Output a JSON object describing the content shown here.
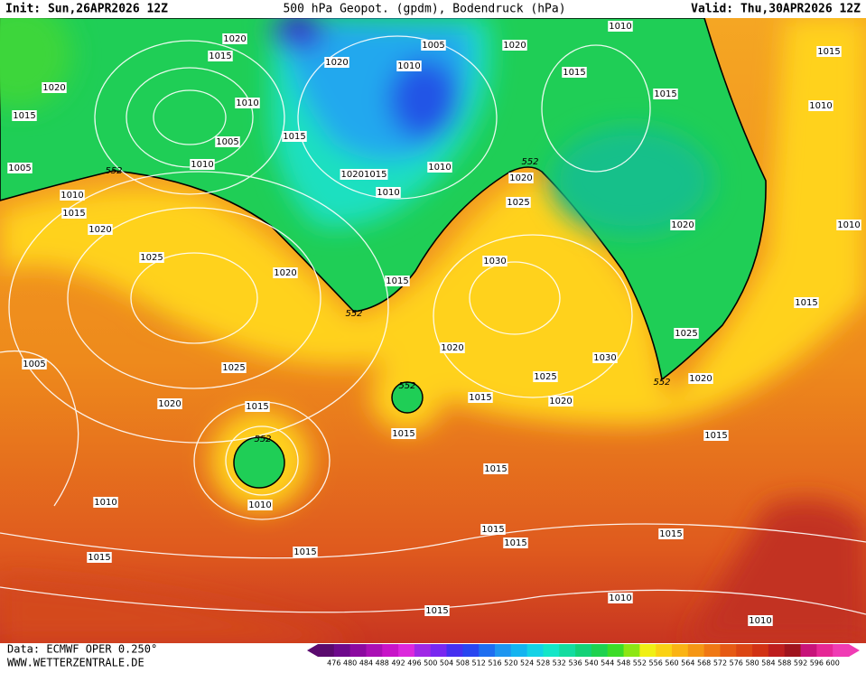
{
  "header": {
    "init": "Init: Sun,26APR2026 12Z",
    "title": "500 hPa Geopot. (gpdm), Bodendruck (hPa)",
    "valid": "Valid: Thu,30APR2026 12Z"
  },
  "footer": {
    "source": "Data: ECMWF OPER 0.250°",
    "website": "WWW.WETTERZENTRALE.DE"
  },
  "colorbar": {
    "labels": [
      476,
      480,
      484,
      488,
      492,
      496,
      500,
      504,
      508,
      512,
      516,
      520,
      524,
      528,
      532,
      536,
      540,
      544,
      548,
      552,
      556,
      560,
      564,
      568,
      572,
      576,
      580,
      584,
      588,
      592,
      596,
      600
    ]
  },
  "contour_labels": [
    552,
    552,
    552,
    552,
    552,
    552
  ],
  "isobar_labels": [
    1020,
    1015,
    1020,
    1015,
    1010,
    1005,
    1010,
    1005,
    1015,
    1020,
    1010,
    1005,
    1020,
    1010,
    1015,
    1015,
    1015,
    1010,
    1010,
    "10201015",
    1010,
    1010,
    1015,
    1020,
    1025,
    1020,
    1015,
    1020,
    1025,
    1030,
    1020,
    1015,
    1025,
    1005,
    1025,
    1020,
    1015,
    1020,
    1030,
    1025,
    1015,
    1020,
    1020,
    1015,
    1015,
    1015,
    1010,
    1010,
    1015,
    1015,
    1015,
    1015,
    1015,
    1010,
    1015,
    1010,
    1010
  ]
}
